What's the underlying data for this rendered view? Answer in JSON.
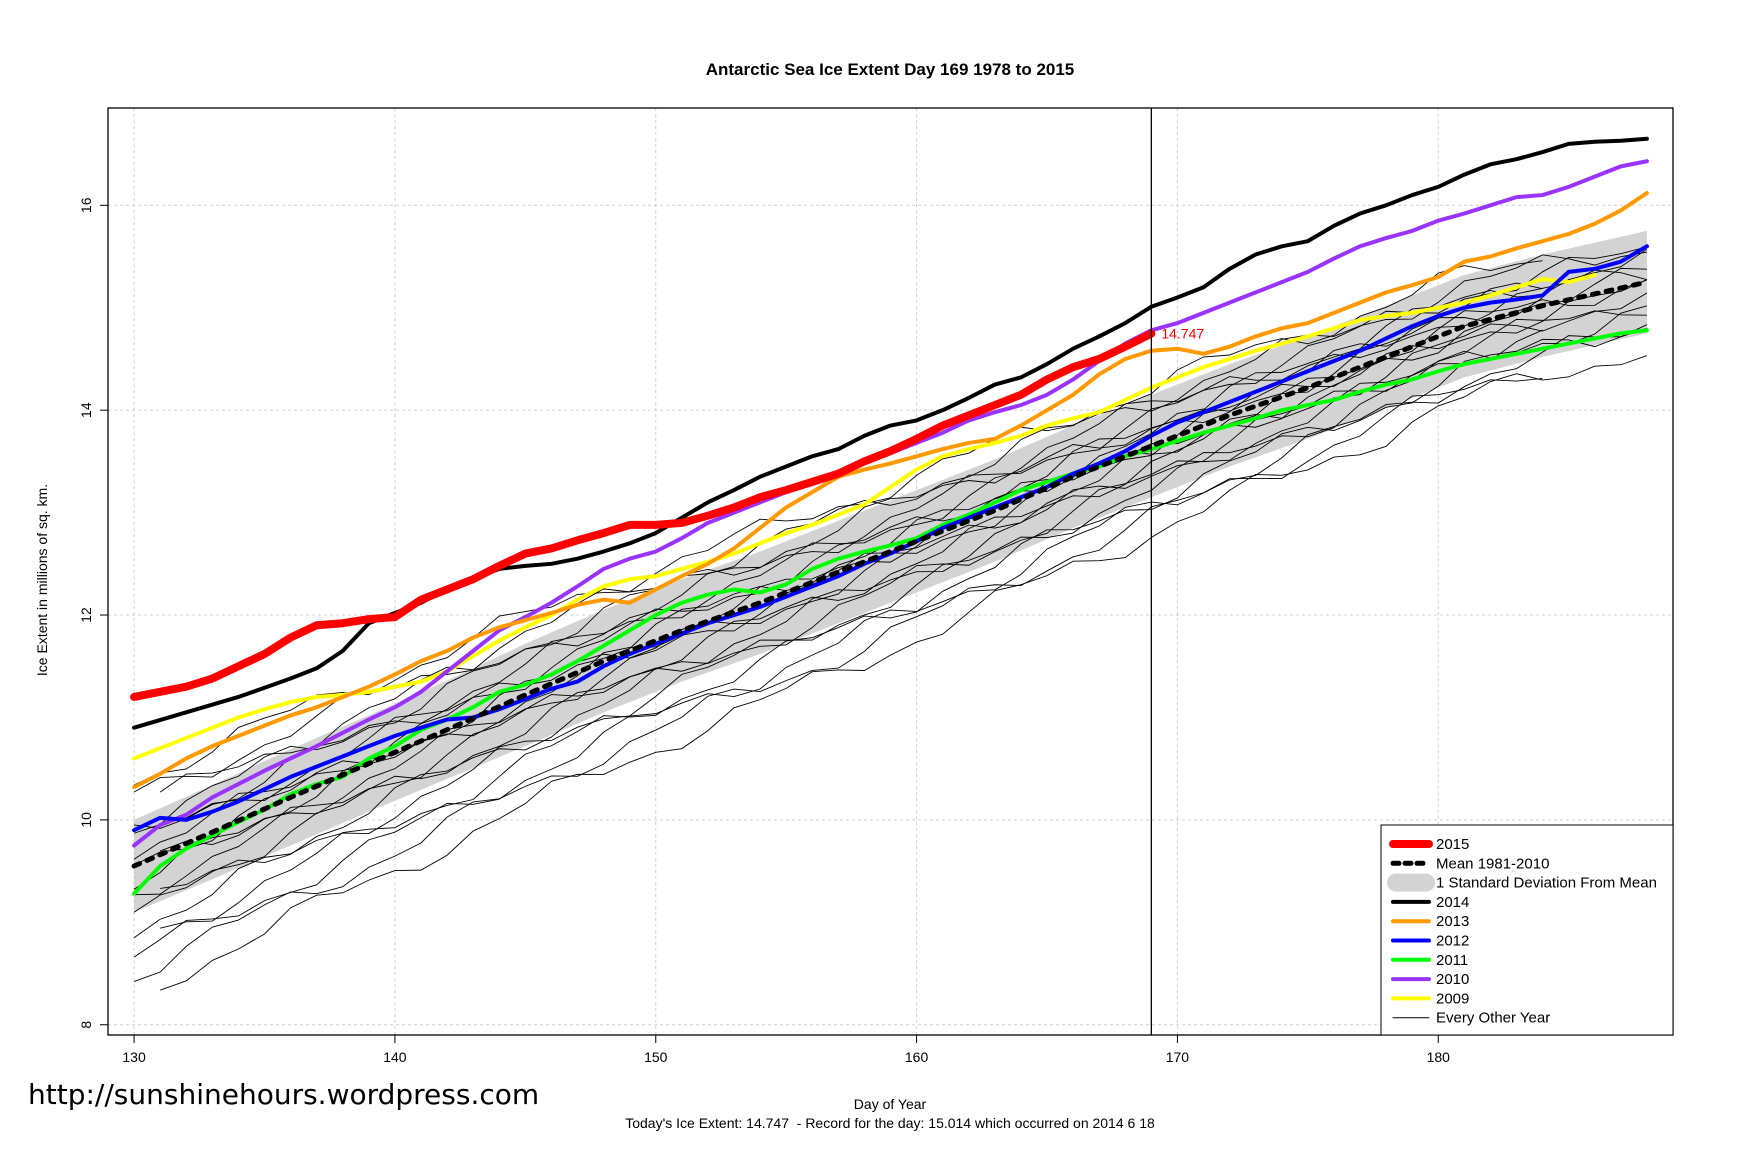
{
  "chart_data": {
    "type": "line",
    "title": "Antarctic Sea Ice Extent Day 169 1978 to 2015",
    "xlabel": "Day of Year",
    "ylabel": "Ice Extent in millions of sq. km.",
    "xlim": [
      129,
      189
    ],
    "ylim": [
      7.9,
      16.95
    ],
    "x_ticks": [
      130,
      140,
      150,
      160,
      170,
      180
    ],
    "y_ticks": [
      8,
      10,
      12,
      14,
      16
    ],
    "grid": true,
    "legend_position": "bottom-right",
    "marker_day": 169,
    "today_value_label": "14.747",
    "footer": "Today's Ice Extent: 14.747  - Record for the day: 15.014 which occurred on 2014 6 18",
    "series": [
      {
        "name": "2015",
        "color": "#ff0000",
        "x": [
          130,
          131,
          132,
          133,
          134,
          135,
          136,
          137,
          138,
          139,
          140,
          141,
          142,
          143,
          144,
          145,
          146,
          147,
          148,
          149,
          150,
          151,
          152,
          153,
          154,
          155,
          156,
          157,
          158,
          159,
          160,
          161,
          162,
          163,
          164,
          165,
          166,
          167,
          168,
          169
        ],
        "y": [
          11.2,
          11.25,
          11.3,
          11.38,
          11.5,
          11.62,
          11.78,
          11.9,
          11.92,
          11.96,
          11.98,
          12.15,
          12.25,
          12.35,
          12.48,
          12.6,
          12.65,
          12.73,
          12.8,
          12.88,
          12.88,
          12.9,
          12.97,
          13.05,
          13.15,
          13.22,
          13.3,
          13.38,
          13.5,
          13.6,
          13.72,
          13.85,
          13.95,
          14.05,
          14.15,
          14.3,
          14.42,
          14.5,
          14.62,
          14.747
        ]
      },
      {
        "name": "Mean 1981-2010",
        "color": "#000000",
        "x": [
          130,
          133,
          136,
          139,
          142,
          145,
          148,
          151,
          154,
          157,
          160,
          163,
          166,
          169,
          172,
          175,
          178,
          181,
          184,
          188
        ],
        "y": [
          9.55,
          9.88,
          10.22,
          10.55,
          10.88,
          11.22,
          11.55,
          11.85,
          12.12,
          12.42,
          12.72,
          13.02,
          13.35,
          13.65,
          13.95,
          14.22,
          14.52,
          14.82,
          15.02,
          15.25
        ]
      },
      {
        "name": "1 Standard Deviation From Mean",
        "color": "#d3d3d3",
        "x": [
          130,
          133,
          136,
          139,
          142,
          145,
          148,
          151,
          154,
          157,
          160,
          163,
          166,
          169,
          172,
          175,
          178,
          181,
          184,
          188
        ],
        "lower": [
          9.1,
          9.42,
          9.75,
          10.08,
          10.4,
          10.72,
          11.05,
          11.35,
          11.62,
          11.92,
          12.22,
          12.52,
          12.85,
          13.15,
          13.45,
          13.72,
          14.02,
          14.32,
          14.52,
          14.75
        ],
        "upper": [
          10.0,
          10.34,
          10.69,
          11.02,
          11.36,
          11.72,
          12.05,
          12.35,
          12.62,
          12.92,
          13.22,
          13.52,
          13.85,
          14.15,
          14.45,
          14.72,
          15.02,
          15.32,
          15.52,
          15.75
        ]
      },
      {
        "name": "2014",
        "color": "#000000",
        "x": [
          130,
          132,
          134,
          136,
          137,
          138,
          139,
          140,
          141,
          142,
          143,
          144,
          145,
          146,
          147,
          148,
          149,
          150,
          151,
          152,
          153,
          154,
          155,
          156,
          157,
          158,
          159,
          160,
          161,
          162,
          163,
          164,
          165,
          166,
          167,
          168,
          169,
          170,
          171,
          172,
          173,
          174,
          175,
          176,
          177,
          178,
          179,
          180,
          181,
          182,
          183,
          184,
          185,
          186,
          187,
          188
        ],
        "y": [
          10.9,
          11.05,
          11.2,
          11.38,
          11.48,
          11.65,
          11.92,
          12.02,
          12.12,
          12.25,
          12.35,
          12.45,
          12.48,
          12.5,
          12.55,
          12.62,
          12.7,
          12.8,
          12.95,
          13.1,
          13.22,
          13.35,
          13.45,
          13.55,
          13.62,
          13.75,
          13.85,
          13.9,
          14.0,
          14.12,
          14.25,
          14.32,
          14.45,
          14.6,
          14.72,
          14.85,
          15.01,
          15.1,
          15.2,
          15.38,
          15.52,
          15.6,
          15.65,
          15.8,
          15.92,
          16.0,
          16.1,
          16.18,
          16.3,
          16.4,
          16.45,
          16.52,
          16.6,
          16.62,
          16.63,
          16.65
        ]
      },
      {
        "name": "2013",
        "color": "#ff9900",
        "x": [
          130,
          131,
          132,
          133,
          134,
          135,
          136,
          137,
          138,
          139,
          140,
          141,
          142,
          143,
          144,
          145,
          146,
          147,
          148,
          149,
          150,
          151,
          152,
          153,
          154,
          155,
          156,
          157,
          158,
          159,
          160,
          161,
          162,
          163,
          164,
          165,
          166,
          167,
          168,
          169,
          170,
          171,
          172,
          173,
          174,
          175,
          176,
          177,
          178,
          179,
          180,
          181,
          182,
          183,
          184,
          185,
          186,
          187,
          188
        ],
        "y": [
          10.32,
          10.45,
          10.6,
          10.72,
          10.82,
          10.92,
          11.02,
          11.1,
          11.2,
          11.3,
          11.42,
          11.55,
          11.65,
          11.78,
          11.88,
          11.95,
          12.02,
          12.1,
          12.15,
          12.12,
          12.25,
          12.38,
          12.5,
          12.65,
          12.85,
          13.05,
          13.2,
          13.35,
          13.42,
          13.48,
          13.55,
          13.62,
          13.68,
          13.72,
          13.85,
          14.0,
          14.15,
          14.35,
          14.5,
          14.58,
          14.6,
          14.55,
          14.62,
          14.72,
          14.8,
          14.85,
          14.95,
          15.05,
          15.15,
          15.22,
          15.3,
          15.45,
          15.5,
          15.58,
          15.65,
          15.72,
          15.82,
          15.95,
          16.12
        ]
      },
      {
        "name": "2012",
        "color": "#0000ff",
        "x": [
          130,
          131,
          132,
          133,
          134,
          135,
          136,
          137,
          138,
          139,
          140,
          141,
          142,
          143,
          144,
          145,
          146,
          147,
          148,
          149,
          150,
          151,
          152,
          153,
          154,
          155,
          156,
          157,
          158,
          159,
          160,
          161,
          162,
          163,
          164,
          165,
          166,
          167,
          168,
          169,
          170,
          171,
          172,
          173,
          174,
          175,
          176,
          177,
          178,
          179,
          180,
          181,
          182,
          183,
          184,
          185,
          186,
          187,
          188
        ],
        "y": [
          9.9,
          10.02,
          10.0,
          10.08,
          10.18,
          10.3,
          10.42,
          10.52,
          10.62,
          10.72,
          10.82,
          10.9,
          10.98,
          11.0,
          11.08,
          11.18,
          11.28,
          11.35,
          11.5,
          11.62,
          11.72,
          11.82,
          11.92,
          12.0,
          12.08,
          12.18,
          12.28,
          12.38,
          12.5,
          12.6,
          12.72,
          12.85,
          12.95,
          13.05,
          13.15,
          13.25,
          13.38,
          13.48,
          13.6,
          13.75,
          13.88,
          13.98,
          14.08,
          14.18,
          14.28,
          14.38,
          14.48,
          14.58,
          14.7,
          14.82,
          14.92,
          15.0,
          15.05,
          15.08,
          15.12,
          15.35,
          15.38,
          15.45,
          15.6
        ]
      },
      {
        "name": "2011",
        "color": "#00ff00",
        "x": [
          130,
          131,
          132,
          133,
          134,
          135,
          136,
          137,
          138,
          139,
          140,
          141,
          142,
          143,
          144,
          145,
          146,
          147,
          148,
          149,
          150,
          151,
          152,
          153,
          154,
          155,
          156,
          157,
          158,
          159,
          160,
          161,
          162,
          163,
          164,
          165,
          166,
          167,
          168,
          169,
          170,
          171,
          172,
          173,
          174,
          175,
          176,
          177,
          178,
          179,
          180,
          181,
          182,
          183,
          184,
          185,
          186,
          187,
          188
        ],
        "y": [
          9.28,
          9.55,
          9.72,
          9.85,
          9.98,
          10.1,
          10.25,
          10.35,
          10.42,
          10.6,
          10.72,
          10.88,
          10.98,
          11.1,
          11.25,
          11.32,
          11.42,
          11.55,
          11.7,
          11.85,
          12.0,
          12.12,
          12.2,
          12.25,
          12.22,
          12.3,
          12.45,
          12.55,
          12.62,
          12.68,
          12.75,
          12.88,
          12.98,
          13.1,
          13.22,
          13.3,
          13.38,
          13.45,
          13.55,
          13.62,
          13.7,
          13.78,
          13.85,
          13.92,
          14.0,
          14.05,
          14.1,
          14.18,
          14.25,
          14.3,
          14.38,
          14.45,
          14.5,
          14.55,
          14.6,
          14.65,
          14.7,
          14.75,
          14.78
        ]
      },
      {
        "name": "2010",
        "color": "#9933ff",
        "x": [
          130,
          131,
          132,
          133,
          134,
          135,
          136,
          137,
          138,
          139,
          140,
          141,
          142,
          143,
          144,
          145,
          146,
          147,
          148,
          149,
          150,
          151,
          152,
          153,
          154,
          155,
          156,
          157,
          158,
          159,
          160,
          161,
          162,
          163,
          164,
          165,
          166,
          167,
          168,
          169,
          170,
          171,
          172,
          173,
          174,
          175,
          176,
          177,
          178,
          179,
          180,
          181,
          182,
          183,
          184,
          185,
          186,
          187,
          188
        ],
        "y": [
          9.75,
          9.95,
          10.05,
          10.22,
          10.35,
          10.48,
          10.6,
          10.72,
          10.85,
          10.98,
          11.1,
          11.25,
          11.45,
          11.65,
          11.85,
          11.98,
          12.12,
          12.28,
          12.45,
          12.55,
          12.62,
          12.75,
          12.9,
          13.0,
          13.1,
          13.2,
          13.28,
          13.38,
          13.48,
          13.58,
          13.68,
          13.78,
          13.9,
          13.98,
          14.05,
          14.15,
          14.3,
          14.48,
          14.65,
          14.78,
          14.85,
          14.95,
          15.05,
          15.15,
          15.25,
          15.35,
          15.48,
          15.6,
          15.68,
          15.75,
          15.85,
          15.92,
          16.0,
          16.08,
          16.1,
          16.18,
          16.28,
          16.38,
          16.43
        ]
      },
      {
        "name": "2009",
        "color": "#ffff00",
        "x": [
          130,
          131,
          132,
          133,
          134,
          135,
          136,
          137,
          138,
          139,
          140,
          141,
          142,
          143,
          144,
          145,
          146,
          147,
          148,
          149,
          150,
          151,
          152,
          153,
          154,
          155,
          156,
          157,
          158,
          159,
          160,
          161,
          162,
          163,
          164,
          165,
          166,
          167,
          168,
          169,
          170,
          171,
          172,
          173,
          174,
          175,
          176,
          177,
          178,
          179,
          180,
          181,
          182,
          183,
          184,
          185,
          186
        ],
        "y": [
          10.6,
          10.7,
          10.8,
          10.9,
          11.0,
          11.08,
          11.15,
          11.2,
          11.22,
          11.25,
          11.3,
          11.35,
          11.45,
          11.6,
          11.75,
          11.88,
          12.0,
          12.15,
          12.28,
          12.35,
          12.38,
          12.45,
          12.52,
          12.6,
          12.7,
          12.8,
          12.88,
          12.98,
          13.08,
          13.25,
          13.42,
          13.55,
          13.62,
          13.68,
          13.75,
          13.85,
          13.92,
          13.98,
          14.1,
          14.22,
          14.32,
          14.42,
          14.5,
          14.58,
          14.65,
          14.72,
          14.8,
          14.88,
          14.92,
          14.95,
          15.0,
          15.05,
          15.12,
          15.2,
          15.28,
          15.25,
          15.32
        ]
      },
      {
        "name": "Every Other Year",
        "color": "#000000"
      }
    ]
  }
}
